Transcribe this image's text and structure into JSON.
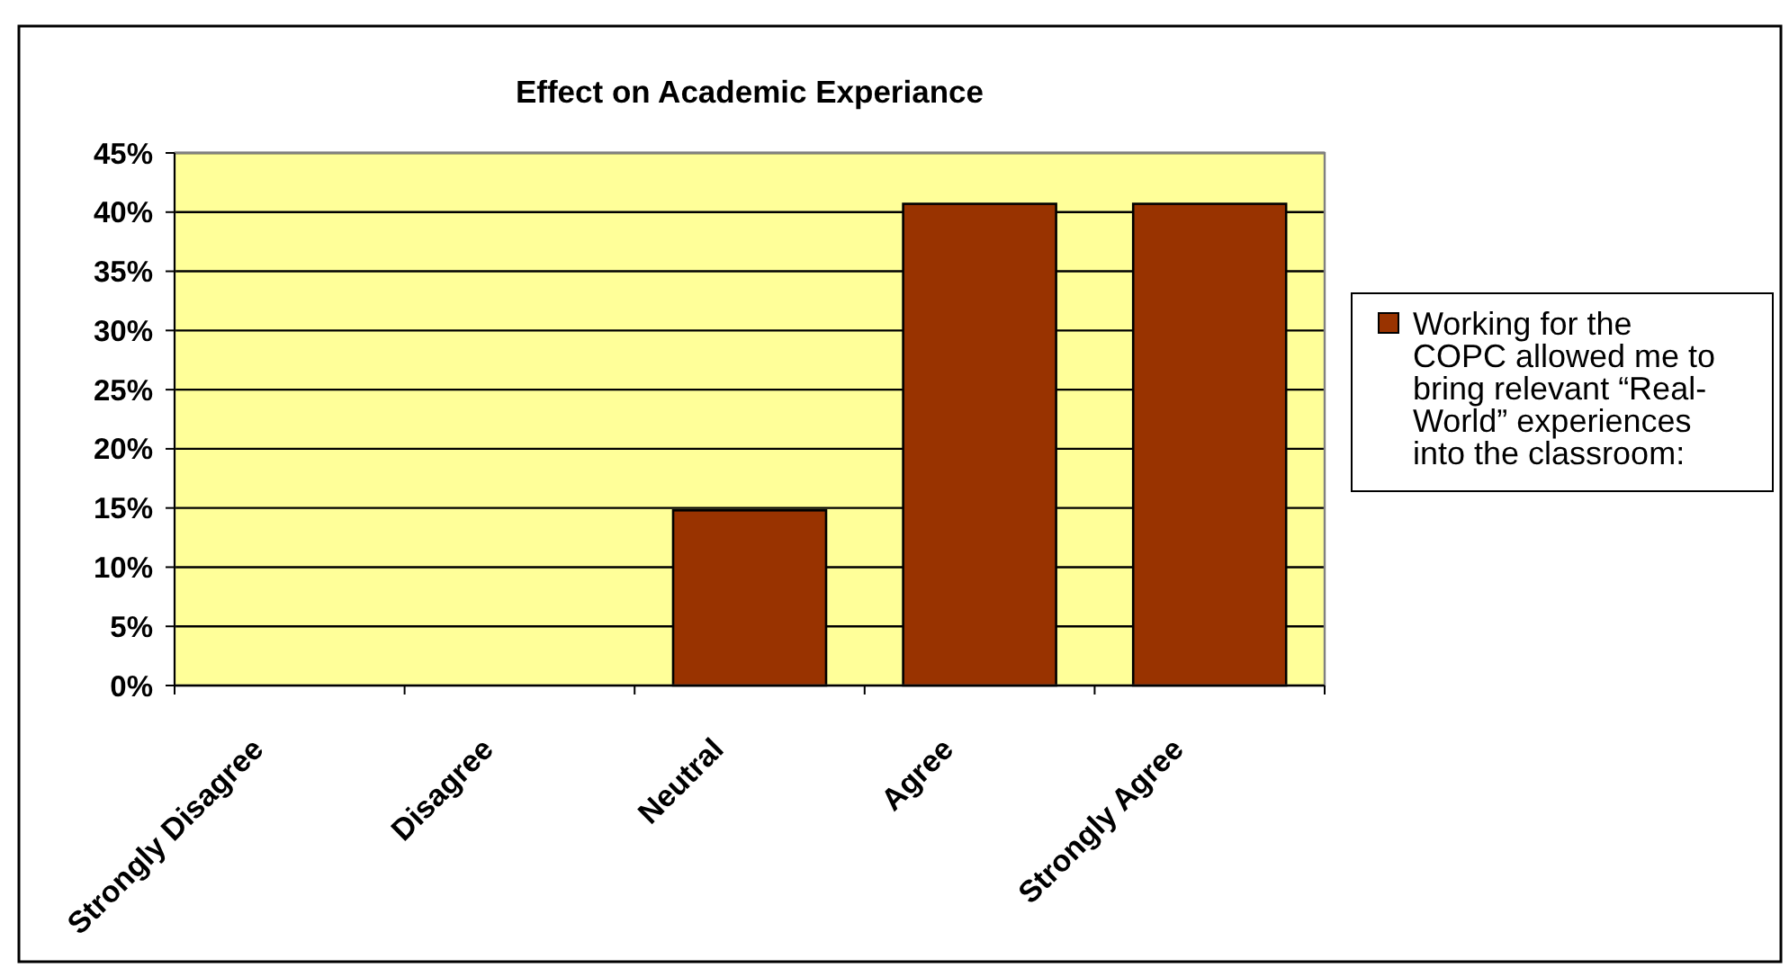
{
  "chart_data": {
    "type": "bar",
    "title": "Effect on Academic Experiance",
    "categories": [
      "Strongly Disagree",
      "Disagree",
      "Neutral",
      "Agree",
      "Strongly Agree"
    ],
    "series": [
      {
        "name": "Working for the COPC allowed me to bring relevant “Real-World” experiences into the classroom:",
        "color": "#993300",
        "values": [
          0,
          0,
          14.8,
          40.7,
          40.7
        ]
      }
    ],
    "ylim": [
      0,
      45
    ],
    "yticks": [
      {
        "value": 0,
        "label": "0%"
      },
      {
        "value": 5,
        "label": "5%"
      },
      {
        "value": 10,
        "label": "10%"
      },
      {
        "value": 15,
        "label": "15%"
      },
      {
        "value": 20,
        "label": "20%"
      },
      {
        "value": 25,
        "label": "25%"
      },
      {
        "value": 30,
        "label": "30%"
      },
      {
        "value": 35,
        "label": "35%"
      },
      {
        "value": 40,
        "label": "40%"
      },
      {
        "value": 45,
        "label": "45%"
      }
    ],
    "grid": "y",
    "legend": "right"
  }
}
